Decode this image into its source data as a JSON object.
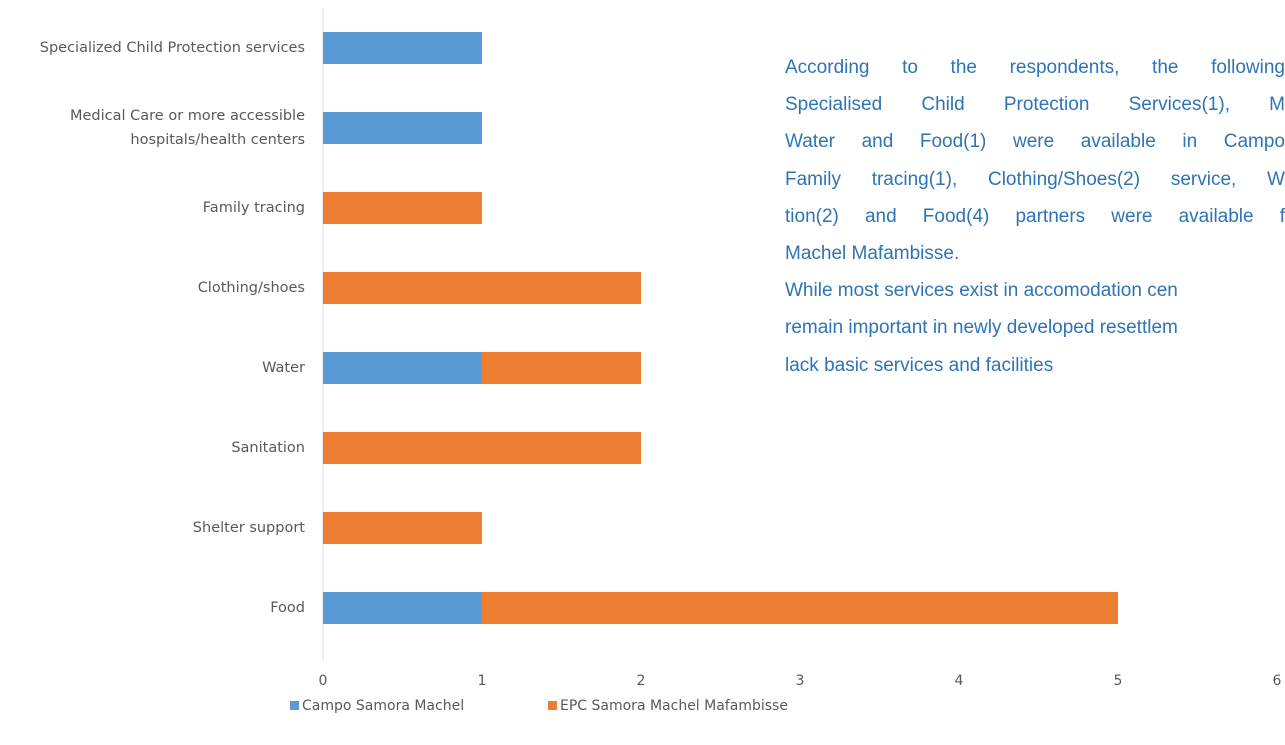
{
  "chart_data": {
    "type": "stacked-barh",
    "categories": [
      "Specialized Child Protection services",
      "Medical Care or more accessible\nhospitals/health centers",
      "Family tracing",
      "Clothing/shoes",
      "Water",
      "Sanitation",
      "Shelter support",
      "Food"
    ],
    "series": [
      {
        "name": "Campo Samora Machel",
        "color": "#5b9bd5",
        "values": [
          1,
          1,
          0,
          0,
          1,
          0,
          0,
          1
        ]
      },
      {
        "name": "EPC Samora Machel Mafambisse",
        "color": "#ed7d31",
        "values": [
          0,
          0,
          1,
          2,
          1,
          2,
          1,
          4
        ]
      }
    ],
    "xlim": [
      0,
      6
    ],
    "xticks": [
      0,
      1,
      2,
      3,
      4,
      5,
      6
    ],
    "grid": false,
    "legend": "bottom"
  },
  "text_box": {
    "color": "#2e74b5",
    "paragraphs": [
      [
        "According to the respondents, the following",
        "Specialised Child Protection Services(1), M",
        "Water and Food(1) were available in Campo",
        "Family tracing(1), Clothing/Shoes(2) service, W",
        "tion(2) and Food(4) partners were available f",
        "Machel Mafambisse."
      ],
      [
        " While most services exist in accomodation cen",
        "remain important in newly developed resettlem",
        "lack basic services and facilities"
      ]
    ]
  }
}
